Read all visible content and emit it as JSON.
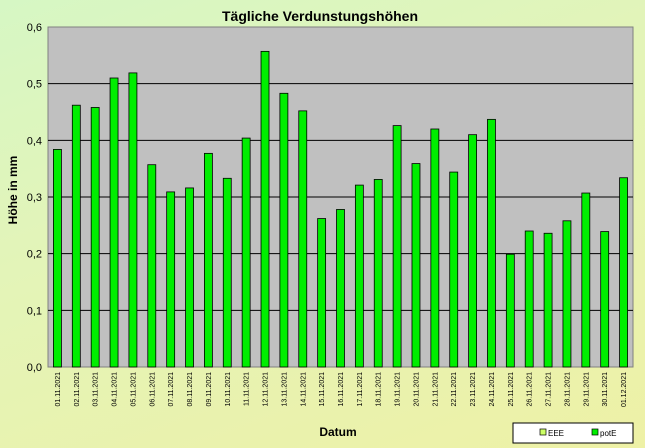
{
  "chart_data": {
    "type": "bar",
    "title": "Tägliche Verdunstungshöhen",
    "xlabel": "Datum",
    "ylabel": "Höhe in mm",
    "ylim": [
      0,
      0.6
    ],
    "yticks": [
      "0,0",
      "0,1",
      "0,2",
      "0,3",
      "0,4",
      "0,5",
      "0,6"
    ],
    "grid": true,
    "legend_position": "bottom-right",
    "categories": [
      "01.11.2021",
      "02.11.2021",
      "03.11.2021",
      "04.11.2021",
      "05.11.2021",
      "06.11.2021",
      "07.11.2021",
      "08.11.2021",
      "09.11.2021",
      "10.11.2021",
      "11.11.2021",
      "12.11.2021",
      "13.11.2021",
      "14.11.2021",
      "15.11.2021",
      "16.11.2021",
      "17.11.2021",
      "18.11.2021",
      "19.11.2021",
      "20.11.2021",
      "21.11.2021",
      "22.11.2021",
      "23.11.2021",
      "24.11.2021",
      "25.11.2021",
      "26.11.2021",
      "27.11.2021",
      "28.11.2021",
      "29.11.2021",
      "30.11.2021",
      "01.12.2021"
    ],
    "series": [
      {
        "name": "EEE",
        "color": "#ccff66",
        "values": [
          0,
          0,
          0,
          0,
          0,
          0,
          0,
          0,
          0,
          0,
          0,
          0,
          0,
          0,
          0,
          0,
          0,
          0,
          0,
          0,
          0,
          0,
          0,
          0,
          0,
          0,
          0,
          0,
          0,
          0,
          0
        ]
      },
      {
        "name": "potE",
        "color": "#00ee00",
        "values": [
          0.384,
          0.462,
          0.458,
          0.51,
          0.519,
          0.357,
          0.309,
          0.316,
          0.377,
          0.333,
          0.404,
          0.557,
          0.483,
          0.452,
          0.262,
          0.278,
          0.321,
          0.331,
          0.426,
          0.359,
          0.42,
          0.344,
          0.41,
          0.437,
          0.199,
          0.24,
          0.236,
          0.258,
          0.307,
          0.239,
          0.334
        ]
      }
    ],
    "colors": {
      "plot_background": "#c0c0c0",
      "gridline": "#000000"
    }
  }
}
